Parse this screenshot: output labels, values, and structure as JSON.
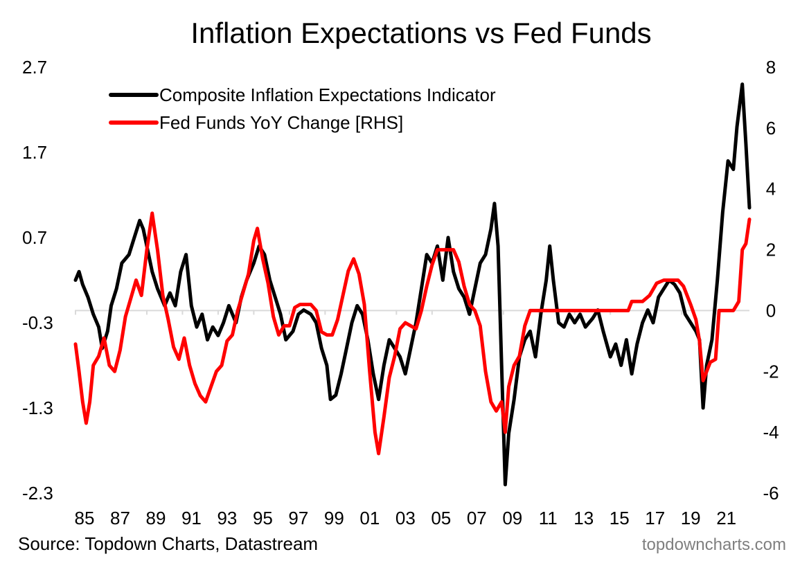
{
  "chart_data": {
    "type": "line",
    "title": "Inflation Expectations vs Fed Funds",
    "source": "Source: Topdown Charts, Datastream",
    "watermark": "topdowncharts.com",
    "x_ticks": [
      "85",
      "87",
      "89",
      "91",
      "93",
      "95",
      "97",
      "99",
      "01",
      "03",
      "05",
      "07",
      "09",
      "11",
      "13",
      "15",
      "17",
      "19",
      "21"
    ],
    "x_range": [
      1985,
      2022.8
    ],
    "y_left": {
      "ticks": [
        "2.7",
        "1.7",
        "0.7",
        "-0.3",
        "-1.3",
        "-2.3"
      ],
      "range": [
        -2.3,
        2.7
      ]
    },
    "y_right": {
      "ticks": [
        "8",
        "6",
        "4",
        "2",
        "0",
        "-2",
        "-4",
        "-6"
      ],
      "range": [
        -6,
        8
      ]
    },
    "legend_position": "top-left",
    "colors": {
      "composite": "#000000",
      "fedfunds": "#ff0000",
      "zero_line": "#d9d9d9"
    },
    "series": [
      {
        "name": "Composite Inflation Expectations Indicator",
        "axis": "left",
        "color": "#000000",
        "points": [
          [
            1985.0,
            0.2
          ],
          [
            1985.2,
            0.3
          ],
          [
            1985.4,
            0.15
          ],
          [
            1985.7,
            0.0
          ],
          [
            1986.0,
            -0.2
          ],
          [
            1986.3,
            -0.35
          ],
          [
            1986.5,
            -0.6
          ],
          [
            1986.8,
            -0.4
          ],
          [
            1987.0,
            -0.1
          ],
          [
            1987.3,
            0.1
          ],
          [
            1987.6,
            0.4
          ],
          [
            1988.0,
            0.5
          ],
          [
            1988.3,
            0.7
          ],
          [
            1988.6,
            0.9
          ],
          [
            1988.8,
            0.8
          ],
          [
            1989.0,
            0.6
          ],
          [
            1989.3,
            0.3
          ],
          [
            1989.6,
            0.1
          ],
          [
            1990.0,
            -0.1
          ],
          [
            1990.3,
            0.05
          ],
          [
            1990.6,
            -0.1
          ],
          [
            1990.9,
            0.3
          ],
          [
            1991.2,
            0.5
          ],
          [
            1991.5,
            -0.1
          ],
          [
            1991.8,
            -0.35
          ],
          [
            1992.1,
            -0.2
          ],
          [
            1992.4,
            -0.5
          ],
          [
            1992.7,
            -0.35
          ],
          [
            1993.0,
            -0.45
          ],
          [
            1993.3,
            -0.3
          ],
          [
            1993.6,
            -0.1
          ],
          [
            1994.0,
            -0.3
          ],
          [
            1994.3,
            0.0
          ],
          [
            1994.6,
            0.2
          ],
          [
            1995.0,
            0.4
          ],
          [
            1995.3,
            0.6
          ],
          [
            1995.6,
            0.5
          ],
          [
            1995.9,
            0.2
          ],
          [
            1996.2,
            0.0
          ],
          [
            1996.5,
            -0.2
          ],
          [
            1996.8,
            -0.5
          ],
          [
            1997.2,
            -0.4
          ],
          [
            1997.5,
            -0.2
          ],
          [
            1997.8,
            -0.15
          ],
          [
            1998.2,
            -0.2
          ],
          [
            1998.5,
            -0.3
          ],
          [
            1998.8,
            -0.6
          ],
          [
            1999.1,
            -0.8
          ],
          [
            1999.3,
            -1.2
          ],
          [
            1999.6,
            -1.15
          ],
          [
            1999.9,
            -0.9
          ],
          [
            2000.2,
            -0.6
          ],
          [
            2000.5,
            -0.3
          ],
          [
            2000.8,
            -0.1
          ],
          [
            2001.1,
            -0.2
          ],
          [
            2001.4,
            -0.5
          ],
          [
            2001.7,
            -0.9
          ],
          [
            2002.0,
            -1.2
          ],
          [
            2002.3,
            -0.8
          ],
          [
            2002.6,
            -0.5
          ],
          [
            2002.9,
            -0.6
          ],
          [
            2003.2,
            -0.7
          ],
          [
            2003.5,
            -0.9
          ],
          [
            2003.8,
            -0.6
          ],
          [
            2004.1,
            -0.3
          ],
          [
            2004.4,
            0.1
          ],
          [
            2004.7,
            0.5
          ],
          [
            2005.0,
            0.4
          ],
          [
            2005.3,
            0.6
          ],
          [
            2005.6,
            0.2
          ],
          [
            2005.9,
            0.7
          ],
          [
            2006.2,
            0.3
          ],
          [
            2006.5,
            0.1
          ],
          [
            2006.8,
            0.0
          ],
          [
            2007.1,
            -0.2
          ],
          [
            2007.4,
            0.1
          ],
          [
            2007.7,
            0.4
          ],
          [
            2008.0,
            0.5
          ],
          [
            2008.3,
            0.8
          ],
          [
            2008.5,
            1.1
          ],
          [
            2008.7,
            0.6
          ],
          [
            2008.9,
            -0.8
          ],
          [
            2009.1,
            -2.2
          ],
          [
            2009.3,
            -1.6
          ],
          [
            2009.6,
            -1.2
          ],
          [
            2009.9,
            -0.7
          ],
          [
            2010.2,
            -0.5
          ],
          [
            2010.5,
            -0.4
          ],
          [
            2010.8,
            -0.7
          ],
          [
            2011.1,
            -0.2
          ],
          [
            2011.4,
            0.2
          ],
          [
            2011.6,
            0.6
          ],
          [
            2011.8,
            0.2
          ],
          [
            2012.1,
            -0.3
          ],
          [
            2012.4,
            -0.35
          ],
          [
            2012.7,
            -0.2
          ],
          [
            2013.0,
            -0.3
          ],
          [
            2013.3,
            -0.2
          ],
          [
            2013.6,
            -0.35
          ],
          [
            2014.0,
            -0.25
          ],
          [
            2014.3,
            -0.15
          ],
          [
            2014.6,
            -0.4
          ],
          [
            2015.0,
            -0.7
          ],
          [
            2015.3,
            -0.55
          ],
          [
            2015.6,
            -0.8
          ],
          [
            2015.9,
            -0.5
          ],
          [
            2016.2,
            -0.9
          ],
          [
            2016.5,
            -0.55
          ],
          [
            2016.8,
            -0.3
          ],
          [
            2017.1,
            -0.15
          ],
          [
            2017.4,
            -0.3
          ],
          [
            2017.7,
            0.0
          ],
          [
            2018.0,
            0.1
          ],
          [
            2018.3,
            0.2
          ],
          [
            2018.6,
            0.15
          ],
          [
            2018.9,
            0.05
          ],
          [
            2019.2,
            -0.2
          ],
          [
            2019.5,
            -0.3
          ],
          [
            2019.8,
            -0.4
          ],
          [
            2020.0,
            -0.5
          ],
          [
            2020.2,
            -1.3
          ],
          [
            2020.4,
            -0.8
          ],
          [
            2020.7,
            -0.5
          ],
          [
            2021.0,
            0.2
          ],
          [
            2021.3,
            1.0
          ],
          [
            2021.6,
            1.6
          ],
          [
            2021.9,
            1.5
          ],
          [
            2022.1,
            2.0
          ],
          [
            2022.4,
            2.5
          ],
          [
            2022.6,
            1.8
          ],
          [
            2022.8,
            1.05
          ]
        ]
      },
      {
        "name": "Fed Funds YoY Change [RHS]",
        "axis": "right",
        "color": "#ff0000",
        "points": [
          [
            1985.0,
            -1.1
          ],
          [
            1985.2,
            -2.0
          ],
          [
            1985.4,
            -3.0
          ],
          [
            1985.6,
            -3.7
          ],
          [
            1985.8,
            -3.0
          ],
          [
            1986.0,
            -1.8
          ],
          [
            1986.3,
            -1.5
          ],
          [
            1986.6,
            -0.9
          ],
          [
            1986.9,
            -1.8
          ],
          [
            1987.2,
            -2.0
          ],
          [
            1987.5,
            -1.3
          ],
          [
            1987.8,
            -0.2
          ],
          [
            1988.1,
            0.4
          ],
          [
            1988.4,
            1.0
          ],
          [
            1988.7,
            0.5
          ],
          [
            1989.0,
            2.0
          ],
          [
            1989.3,
            3.2
          ],
          [
            1989.6,
            2.0
          ],
          [
            1989.9,
            0.5
          ],
          [
            1990.2,
            -0.3
          ],
          [
            1990.5,
            -1.2
          ],
          [
            1990.8,
            -1.6
          ],
          [
            1991.1,
            -0.9
          ],
          [
            1991.4,
            -1.8
          ],
          [
            1991.7,
            -2.4
          ],
          [
            1992.0,
            -2.8
          ],
          [
            1992.3,
            -3.0
          ],
          [
            1992.6,
            -2.5
          ],
          [
            1992.9,
            -2.0
          ],
          [
            1993.2,
            -1.8
          ],
          [
            1993.5,
            -1.0
          ],
          [
            1993.8,
            -0.8
          ],
          [
            1994.1,
            0.0
          ],
          [
            1994.4,
            0.6
          ],
          [
            1994.7,
            1.2
          ],
          [
            1995.0,
            2.3
          ],
          [
            1995.2,
            2.7
          ],
          [
            1995.5,
            1.7
          ],
          [
            1995.8,
            0.9
          ],
          [
            1996.1,
            -0.2
          ],
          [
            1996.4,
            -0.8
          ],
          [
            1996.7,
            -0.5
          ],
          [
            1997.0,
            -0.5
          ],
          [
            1997.3,
            0.1
          ],
          [
            1997.6,
            0.2
          ],
          [
            1997.9,
            0.2
          ],
          [
            1998.2,
            0.2
          ],
          [
            1998.5,
            0.0
          ],
          [
            1998.8,
            -0.7
          ],
          [
            1999.1,
            -0.8
          ],
          [
            1999.4,
            -0.8
          ],
          [
            1999.7,
            -0.3
          ],
          [
            2000.0,
            0.5
          ],
          [
            2000.3,
            1.3
          ],
          [
            2000.6,
            1.7
          ],
          [
            2000.9,
            1.2
          ],
          [
            2001.2,
            0.2
          ],
          [
            2001.5,
            -2.0
          ],
          [
            2001.8,
            -4.0
          ],
          [
            2002.0,
            -4.7
          ],
          [
            2002.3,
            -3.5
          ],
          [
            2002.6,
            -2.2
          ],
          [
            2002.9,
            -1.5
          ],
          [
            2003.2,
            -0.6
          ],
          [
            2003.5,
            -0.4
          ],
          [
            2003.8,
            -0.5
          ],
          [
            2004.1,
            -0.6
          ],
          [
            2004.4,
            0.0
          ],
          [
            2004.7,
            0.8
          ],
          [
            2005.0,
            1.5
          ],
          [
            2005.3,
            2.0
          ],
          [
            2005.6,
            2.0
          ],
          [
            2005.9,
            2.0
          ],
          [
            2006.2,
            2.0
          ],
          [
            2006.5,
            1.6
          ],
          [
            2006.8,
            0.8
          ],
          [
            2007.1,
            0.2
          ],
          [
            2007.4,
            0.0
          ],
          [
            2007.7,
            -0.5
          ],
          [
            2008.0,
            -2.0
          ],
          [
            2008.3,
            -3.0
          ],
          [
            2008.6,
            -3.3
          ],
          [
            2008.9,
            -3.0
          ],
          [
            2009.1,
            -4.0
          ],
          [
            2009.3,
            -2.5
          ],
          [
            2009.6,
            -1.8
          ],
          [
            2009.9,
            -1.5
          ],
          [
            2010.2,
            -0.5
          ],
          [
            2010.5,
            0.0
          ],
          [
            2011.0,
            0.0
          ],
          [
            2012.0,
            0.0
          ],
          [
            2013.0,
            0.0
          ],
          [
            2014.0,
            0.0
          ],
          [
            2015.0,
            0.0
          ],
          [
            2016.0,
            0.0
          ],
          [
            2016.2,
            0.3
          ],
          [
            2016.8,
            0.3
          ],
          [
            2017.2,
            0.5
          ],
          [
            2017.6,
            0.9
          ],
          [
            2018.0,
            1.0
          ],
          [
            2018.4,
            1.0
          ],
          [
            2018.8,
            1.0
          ],
          [
            2019.1,
            0.8
          ],
          [
            2019.5,
            0.2
          ],
          [
            2019.8,
            -0.3
          ],
          [
            2020.0,
            -1.0
          ],
          [
            2020.2,
            -2.3
          ],
          [
            2020.6,
            -1.7
          ],
          [
            2020.9,
            -1.6
          ],
          [
            2021.1,
            0.0
          ],
          [
            2021.5,
            0.0
          ],
          [
            2021.9,
            0.0
          ],
          [
            2022.2,
            0.3
          ],
          [
            2022.4,
            2.0
          ],
          [
            2022.6,
            2.2
          ],
          [
            2022.8,
            3.0
          ]
        ]
      }
    ]
  }
}
